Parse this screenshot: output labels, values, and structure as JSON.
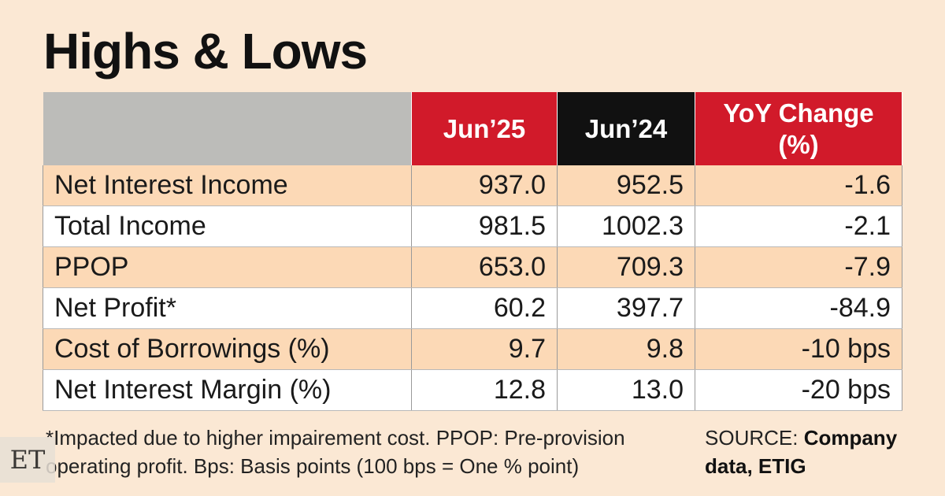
{
  "title": "Highs & Lows",
  "table": {
    "headers": [
      "",
      "Jun’25",
      "Jun’24",
      "YoY Change\n(%)"
    ],
    "header_colors": [
      "#bcbcb9",
      "#d11a2a",
      "#111111",
      "#d11a2a"
    ],
    "rows": [
      [
        "Net Interest Income",
        "937.0",
        "952.5",
        "-1.6"
      ],
      [
        "Total Income",
        "981.5",
        "1002.3",
        "-2.1"
      ],
      [
        "PPOP",
        "653.0",
        "709.3",
        "-7.9"
      ],
      [
        "Net Profit*",
        "60.2",
        "397.7",
        "-84.9"
      ],
      [
        "Cost of Borrowings (%)",
        "9.7",
        "9.8",
        "-10 bps"
      ],
      [
        "Net Interest Margin (%)",
        "12.8",
        "13.0",
        "-20 bps"
      ]
    ]
  },
  "footnote": {
    "line1": "*Impacted due to higher impairement cost. PPOP: Pre-provision",
    "line2": "operating profit. Bps: Basis points (100 bps =  One % point)"
  },
  "source": {
    "prefix": "SOURCE: ",
    "bold": "Company data, ETIG"
  },
  "logo": "ET"
}
